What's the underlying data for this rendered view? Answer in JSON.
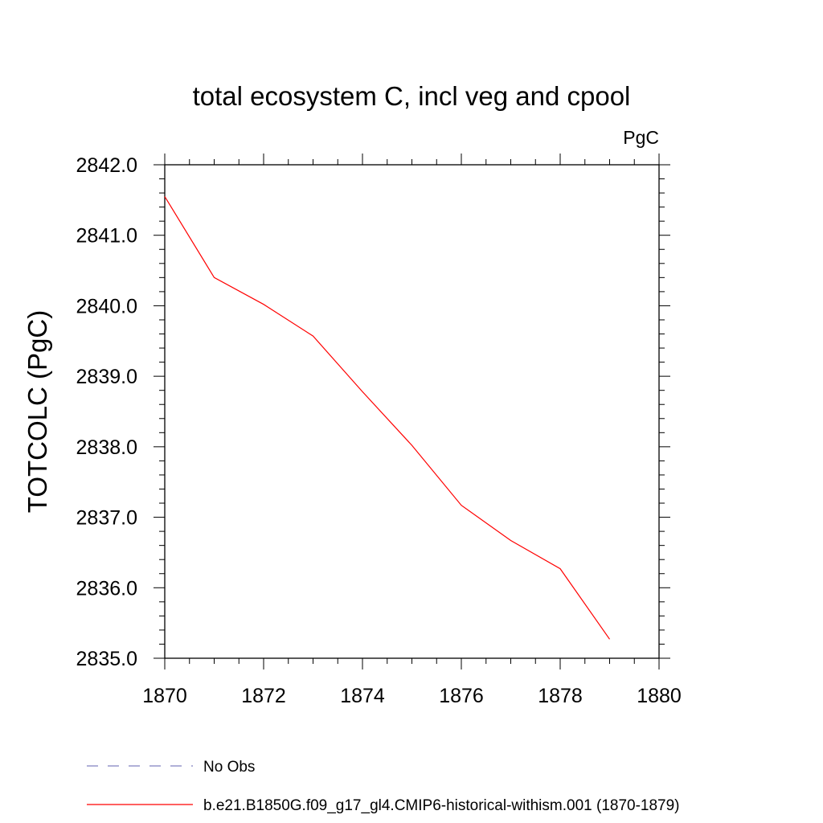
{
  "chart_data": {
    "type": "line",
    "title": "total ecosystem C, incl veg and cpool",
    "units_label": "PgC",
    "ylabel": "TOTCOLC  (PgC)",
    "xlabel": "",
    "xlim": [
      1870,
      1880
    ],
    "ylim": [
      2835.0,
      2842.0
    ],
    "x_ticks": [
      "1870",
      "1872",
      "1874",
      "1876",
      "1878",
      "1880"
    ],
    "y_ticks": [
      "2835.0",
      "2836.0",
      "2837.0",
      "2838.0",
      "2839.0",
      "2840.0",
      "2841.0",
      "2842.0"
    ],
    "grid": false,
    "legend_position": "bottom",
    "series": [
      {
        "name": "b.e21.B1850G.f09_g17_gl4.CMIP6-historical-withism.001 (1870-1879)",
        "color": "#ff0000",
        "style": "solid",
        "x": [
          1870,
          1871,
          1872,
          1873,
          1874,
          1875,
          1876,
          1877,
          1878,
          1879
        ],
        "y": [
          2841.55,
          2840.4,
          2840.02,
          2839.57,
          2838.78,
          2838.02,
          2837.17,
          2836.67,
          2836.27,
          2835.27
        ]
      }
    ],
    "legend": [
      {
        "label": "No Obs",
        "color": "#8080c0",
        "style": "dashed"
      },
      {
        "label": "b.e21.B1850G.f09_g17_gl4.CMIP6-historical-withism.001 (1870-1879)",
        "color": "#ff0000",
        "style": "solid"
      }
    ]
  }
}
